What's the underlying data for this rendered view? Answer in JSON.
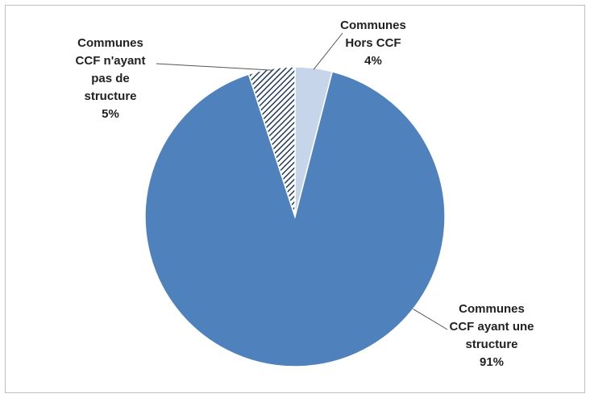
{
  "chart_data": {
    "type": "pie",
    "start_angle_deg": 0,
    "direction": "clockwise",
    "slices": [
      {
        "name": "Communes Hors CCF",
        "lines": [
          "Communes",
          "Hors CCF"
        ],
        "value": 4,
        "value_label": "4%",
        "color": "#c6d5ea",
        "fill": "solid"
      },
      {
        "name": "Communes CCF ayant une structure",
        "lines": [
          "Communes",
          "CCF ayant une",
          "structure"
        ],
        "value": 91,
        "value_label": "91%",
        "color": "#4f81bd",
        "fill": "solid"
      },
      {
        "name": "Communes CCF n'ayant pas de structure",
        "lines": [
          "Communes",
          "CCF n'ayant",
          "pas de",
          "structure"
        ],
        "value": 5,
        "value_label": "5%",
        "color": "#1f3b5c",
        "fill": "hatched"
      }
    ],
    "legend": "none",
    "labels": "outside-with-leader-lines"
  }
}
